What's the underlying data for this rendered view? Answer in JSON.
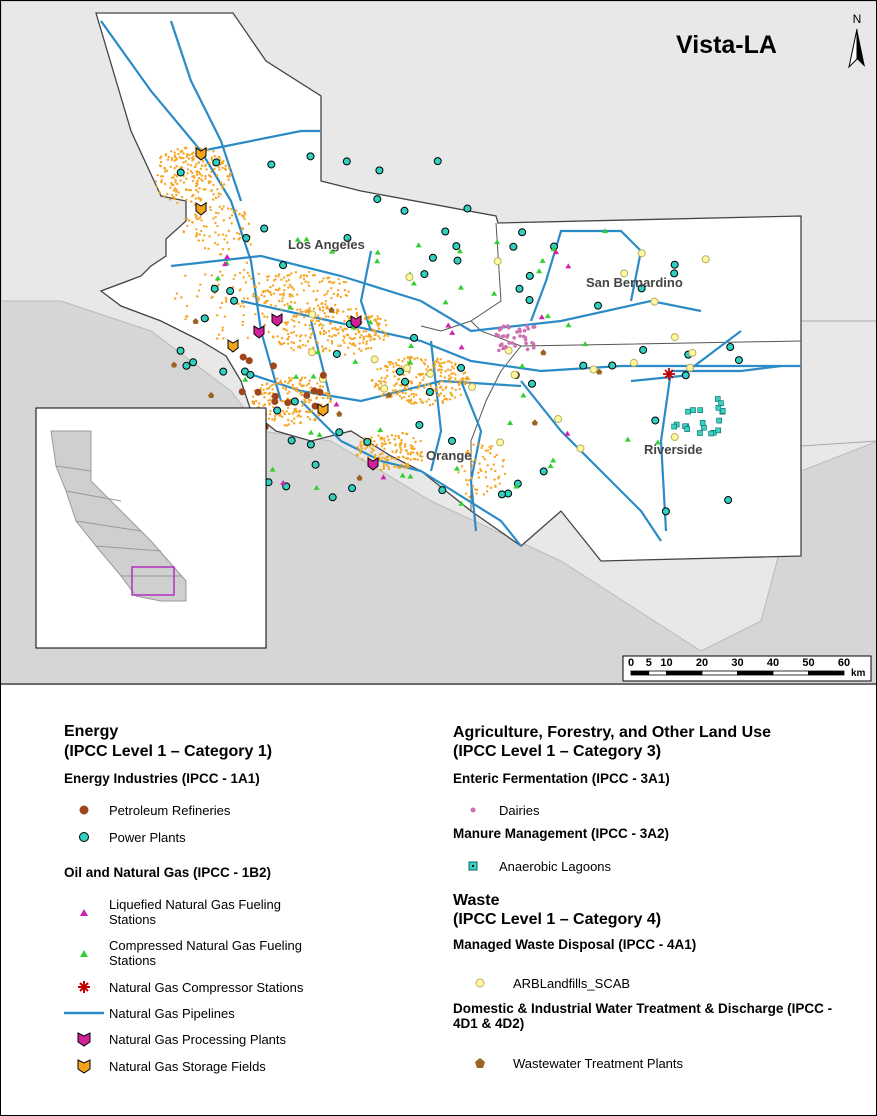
{
  "map": {
    "title": "Vista-LA",
    "north": "N",
    "region_labels": [
      "Los Angeles",
      "San Bernardino",
      "Orange",
      "Riverside"
    ],
    "scale_bar": {
      "ticks": [
        0,
        5,
        10,
        20,
        30,
        40,
        50,
        60
      ],
      "unit": "km"
    }
  },
  "legend": {
    "energy": {
      "title": "Energy",
      "subtitle": "(IPCC Level 1 – Category 1)",
      "groups": [
        {
          "heading": "Energy Industries (IPCC - 1A1)",
          "items": [
            "Petroleum Refineries",
            "Power Plants"
          ]
        },
        {
          "heading": "Oil and Natural Gas (IPCC - 1B2)",
          "items": [
            "Liquefied Natural Gas Fueling Stations",
            "Compressed Natural Gas Fueling Stations",
            "Natural Gas Compressor Stations",
            "Natural Gas Pipelines",
            "Natural Gas Processing Plants",
            "Natural Gas Storage Fields"
          ]
        }
      ]
    },
    "afolu": {
      "title": "Agriculture, Forestry, and Other Land Use",
      "subtitle": "(IPCC Level 1 – Category 3)",
      "groups": [
        {
          "heading": "Enteric Fermentation (IPCC - 3A1)",
          "items": [
            "Dairies"
          ]
        },
        {
          "heading": "Manure Management (IPCC - 3A2)",
          "items": [
            "Anaerobic Lagoons"
          ]
        }
      ]
    },
    "waste": {
      "title": "Waste",
      "subtitle": "(IPCC Level 1 – Category 4)",
      "groups": [
        {
          "heading": "Managed Waste Disposal (IPCC - 4A1)",
          "items": [
            "ARBLandfills_SCAB"
          ]
        },
        {
          "heading": "Domestic & Industrial Water Treatment & Discharge (IPCC - 4D1 & 4D2)",
          "items": [
            "Wastewater Treatment Plants"
          ]
        }
      ]
    }
  }
}
